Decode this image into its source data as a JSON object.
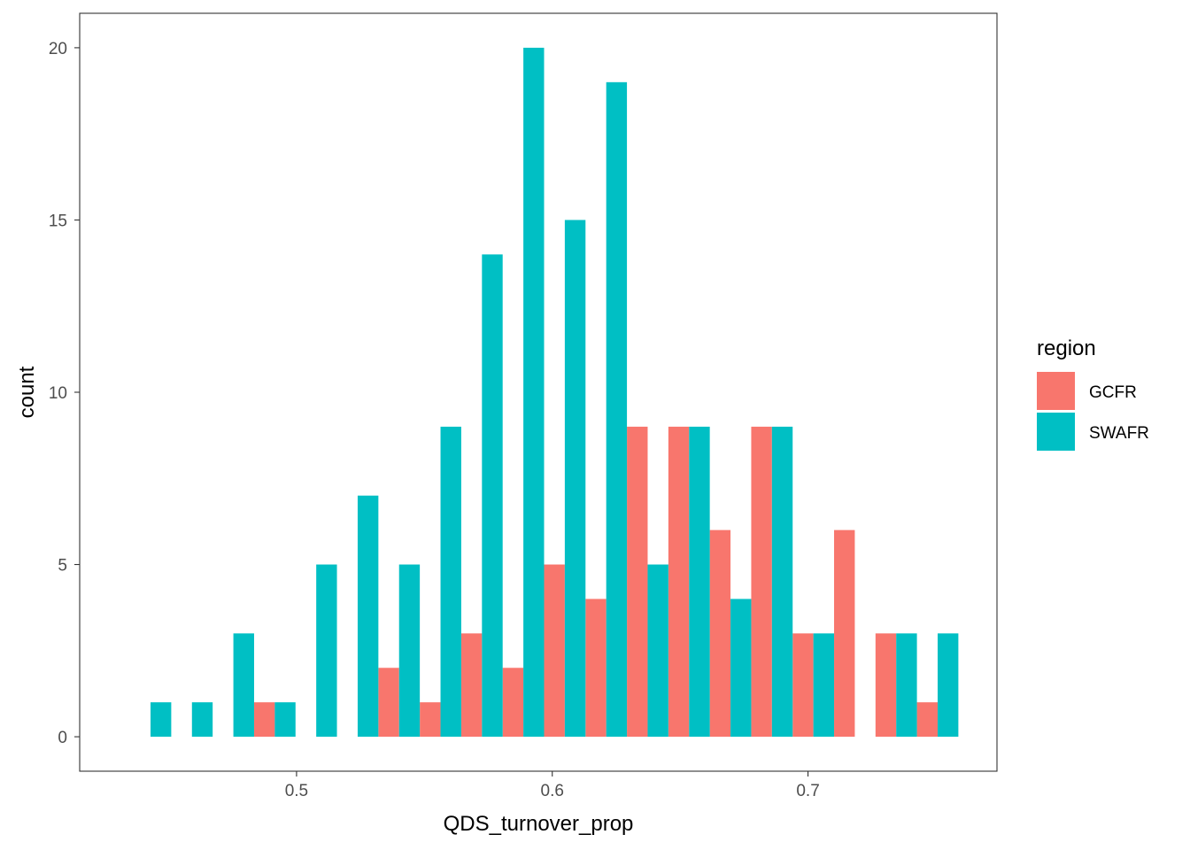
{
  "chart_data": {
    "type": "bar",
    "xlabel": "QDS_turnover_prop",
    "ylabel": "count",
    "xlim": [
      0.4152,
      0.7739
    ],
    "ylim": [
      -1.0,
      21.0
    ],
    "x_ticks": [
      0.5,
      0.6,
      0.7
    ],
    "x_tick_labels": [
      "0.5",
      "0.6",
      "0.7"
    ],
    "y_ticks": [
      0,
      5,
      10,
      15,
      20
    ],
    "y_tick_labels": [
      "0",
      "5",
      "10",
      "15",
      "20"
    ],
    "bin_width": 0.0162,
    "grid": false,
    "legend": {
      "title": "region",
      "position": "right"
    },
    "series": [
      {
        "name": "GCFR",
        "color": "#F8766D",
        "x": [
          0.4429,
          0.4591,
          0.4753,
          0.4915,
          0.5077,
          0.5239,
          0.5401,
          0.5563,
          0.5725,
          0.5887,
          0.6049,
          0.6211,
          0.6373,
          0.6535,
          0.6697,
          0.6859,
          0.7021,
          0.7183,
          0.7345,
          0.7507
        ],
        "values": [
          0,
          0,
          0,
          1,
          0,
          0,
          2,
          1,
          3,
          2,
          5,
          4,
          9,
          9,
          6,
          9,
          3,
          6,
          3,
          1
        ]
      },
      {
        "name": "SWAFR",
        "color": "#00BFC4",
        "x": [
          0.4429,
          0.4591,
          0.4753,
          0.4915,
          0.5077,
          0.5239,
          0.5401,
          0.5563,
          0.5725,
          0.5887,
          0.6049,
          0.6211,
          0.6373,
          0.6535,
          0.6697,
          0.6859,
          0.7021,
          0.7183,
          0.7345,
          0.7507
        ],
        "values": [
          1,
          1,
          3,
          1,
          5,
          7,
          5,
          9,
          14,
          20,
          15,
          19,
          5,
          9,
          4,
          9,
          3,
          0,
          3,
          3
        ]
      }
    ]
  }
}
